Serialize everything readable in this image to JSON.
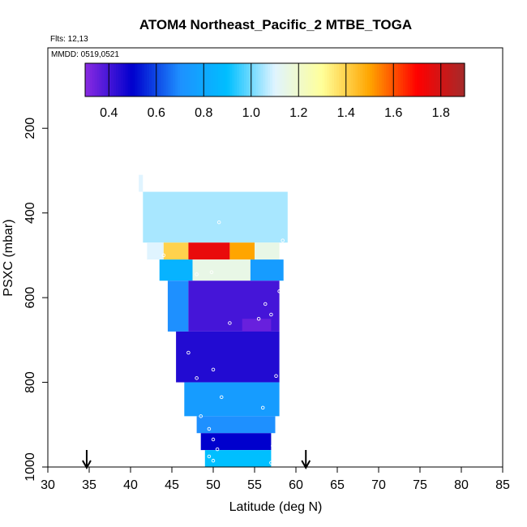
{
  "chart_data": {
    "type": "heatmap",
    "title": "ATOM4 Northeast_Pacific_2 MTBE_TOGA",
    "flights_label": "Flts: 12,13",
    "dates_label": "MMDD: 0519,0521",
    "xlabel": "Latitude (deg N)",
    "ylabel": "PSXC (mbar)",
    "xlim": [
      30,
      85
    ],
    "ylim": [
      1000,
      0
    ],
    "x_ticks": [
      "30",
      "35",
      "40",
      "45",
      "50",
      "55",
      "60",
      "65",
      "70",
      "75",
      "80",
      "85"
    ],
    "y_ticks": [
      "200",
      "400",
      "600",
      "800",
      "1000"
    ],
    "colorbar": {
      "range": [
        0.3,
        1.9
      ],
      "tick_values": [
        0.4,
        0.6,
        0.8,
        1.0,
        1.2,
        1.4,
        1.6,
        1.8
      ],
      "tick_labels": [
        "0.4",
        "0.6",
        "0.8",
        "1.0",
        "1.2",
        "1.4",
        "1.6",
        "1.8"
      ],
      "colors": [
        "#8a2be2",
        "#0000cd",
        "#1e90ff",
        "#00bfff",
        "#e0f4ff",
        "#ffff99",
        "#ffa500",
        "#ff0000",
        "#a52a2a"
      ]
    },
    "flight_track_arrows_lat": [
      34.7,
      61.2
    ],
    "cells": [
      {
        "lat": [
          41.0,
          41.5
        ],
        "p": [
          310,
          350
        ],
        "v": 1.1
      },
      {
        "lat": [
          41.5,
          59.0
        ],
        "p": [
          350,
          470
        ],
        "v": 1.05
      },
      {
        "lat": [
          42.0,
          44.0
        ],
        "p": [
          470,
          510
        ],
        "v": 1.1
      },
      {
        "lat": [
          44.0,
          47.0
        ],
        "p": [
          470,
          510
        ],
        "v": 1.4
      },
      {
        "lat": [
          47.0,
          52.0
        ],
        "p": [
          470,
          510
        ],
        "v": 1.75
      },
      {
        "lat": [
          52.0,
          55.0
        ],
        "p": [
          470,
          510
        ],
        "v": 1.5
      },
      {
        "lat": [
          55.0,
          58.0
        ],
        "p": [
          470,
          510
        ],
        "v": 1.15
      },
      {
        "lat": [
          43.5,
          47.5
        ],
        "p": [
          510,
          560
        ],
        "v": 0.85
      },
      {
        "lat": [
          47.5,
          54.5
        ],
        "p": [
          510,
          560
        ],
        "v": 1.15
      },
      {
        "lat": [
          54.5,
          58.5
        ],
        "p": [
          510,
          560
        ],
        "v": 0.75
      },
      {
        "lat": [
          44.5,
          47.0
        ],
        "p": [
          560,
          680
        ],
        "v": 0.7
      },
      {
        "lat": [
          47.0,
          58.0
        ],
        "p": [
          560,
          680
        ],
        "v": 0.4
      },
      {
        "lat": [
          53.5,
          57.0
        ],
        "p": [
          650,
          690
        ],
        "v": 0.35
      },
      {
        "lat": [
          45.5,
          58.0
        ],
        "p": [
          680,
          800
        ],
        "v": 0.45
      },
      {
        "lat": [
          46.5,
          58.0
        ],
        "p": [
          800,
          880
        ],
        "v": 0.75
      },
      {
        "lat": [
          48.0,
          57.5
        ],
        "p": [
          880,
          920
        ],
        "v": 0.7
      },
      {
        "lat": [
          48.5,
          57.0
        ],
        "p": [
          920,
          960
        ],
        "v": 0.5
      },
      {
        "lat": [
          49.0,
          57.0
        ],
        "p": [
          960,
          1000
        ],
        "v": 0.9
      }
    ],
    "points": [
      {
        "lat": 50.7,
        "p": 422
      },
      {
        "lat": 58.4,
        "p": 465
      },
      {
        "lat": 44.0,
        "p": 500
      },
      {
        "lat": 48.0,
        "p": 545
      },
      {
        "lat": 49.8,
        "p": 540
      },
      {
        "lat": 58.0,
        "p": 585
      },
      {
        "lat": 56.3,
        "p": 615
      },
      {
        "lat": 57.0,
        "p": 640
      },
      {
        "lat": 55.5,
        "p": 650
      },
      {
        "lat": 52.0,
        "p": 660
      },
      {
        "lat": 47.0,
        "p": 730
      },
      {
        "lat": 50.0,
        "p": 770
      },
      {
        "lat": 48.0,
        "p": 790
      },
      {
        "lat": 57.6,
        "p": 785
      },
      {
        "lat": 51.0,
        "p": 835
      },
      {
        "lat": 56.0,
        "p": 860
      },
      {
        "lat": 48.5,
        "p": 880
      },
      {
        "lat": 49.5,
        "p": 910
      },
      {
        "lat": 50.0,
        "p": 935
      },
      {
        "lat": 50.5,
        "p": 958
      },
      {
        "lat": 57.2,
        "p": 950
      },
      {
        "lat": 49.5,
        "p": 975
      },
      {
        "lat": 57.0,
        "p": 990
      },
      {
        "lat": 50.0,
        "p": 985
      }
    ]
  }
}
